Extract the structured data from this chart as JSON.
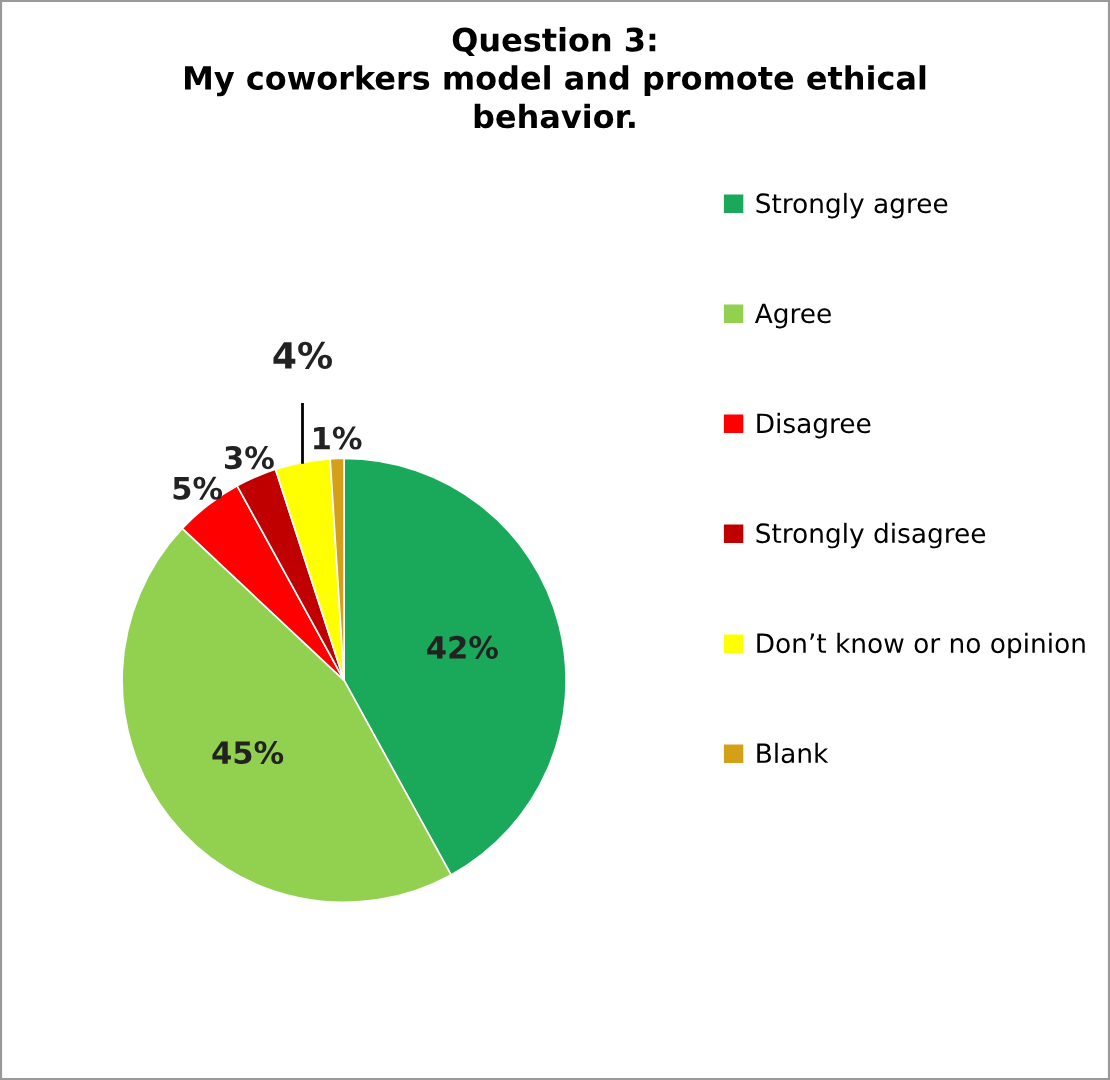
{
  "chart_data": {
    "type": "pie",
    "title": "Question 3:\nMy coworkers model and promote ethical\nbehavior.",
    "categories": [
      "Strongly agree",
      "Agree",
      "Disagree",
      "Strongly disagree",
      "Don’t know or no opinion",
      "Blank"
    ],
    "values": [
      42,
      45,
      5,
      3,
      4,
      1
    ],
    "value_labels": [
      "42%",
      "45%",
      "5%",
      "3%",
      "4%",
      "1%"
    ],
    "colors": [
      "#1aa95a",
      "#92d050",
      "#ff0000",
      "#c00000",
      "#ffff00",
      "#d4a017"
    ],
    "legend": "right"
  }
}
